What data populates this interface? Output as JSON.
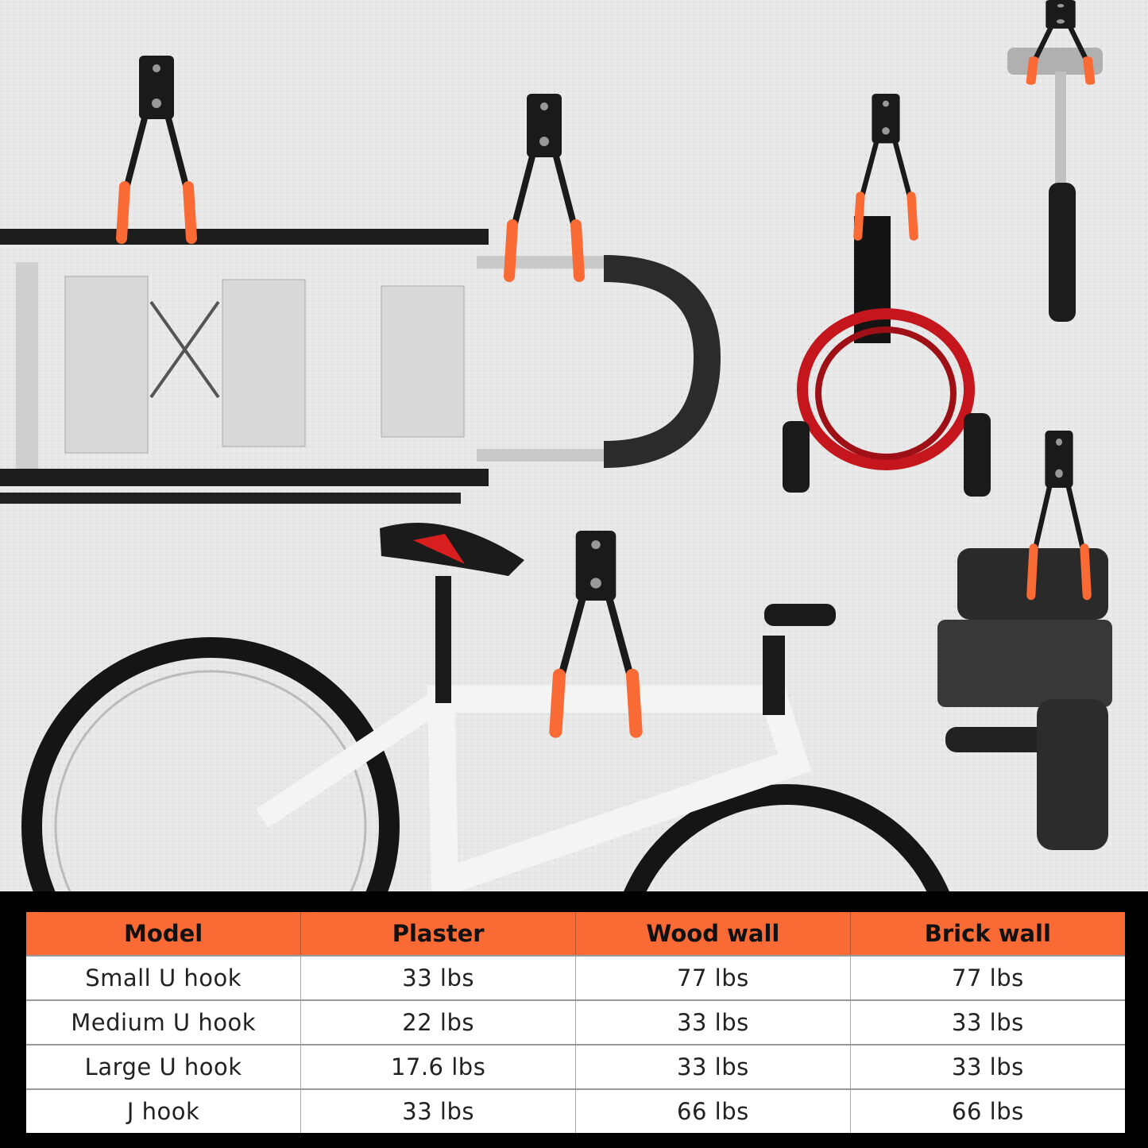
{
  "image": {
    "scene_items": [
      "ladder",
      "bicycle",
      "extension-cord",
      "hammer",
      "hammer-drill",
      "wall-hooks"
    ],
    "colors": {
      "accent_orange": "#f96a35",
      "hook_black": "#1a1a1a",
      "wall": "#e9e9e9",
      "cord_red": "#c4161c"
    }
  },
  "table": {
    "headers": [
      "Model",
      "Plaster",
      "Wood wall",
      "Brick wall"
    ],
    "rows": [
      [
        "Small U hook",
        "33 lbs",
        "77 lbs",
        "77 lbs"
      ],
      [
        "Medium U hook",
        "22 lbs",
        "33 lbs",
        "33 lbs"
      ],
      [
        "Large U hook",
        "17.6 lbs",
        "33 lbs",
        "33 lbs"
      ],
      [
        "J hook",
        "33 lbs",
        "66 lbs",
        "66 lbs"
      ]
    ]
  }
}
